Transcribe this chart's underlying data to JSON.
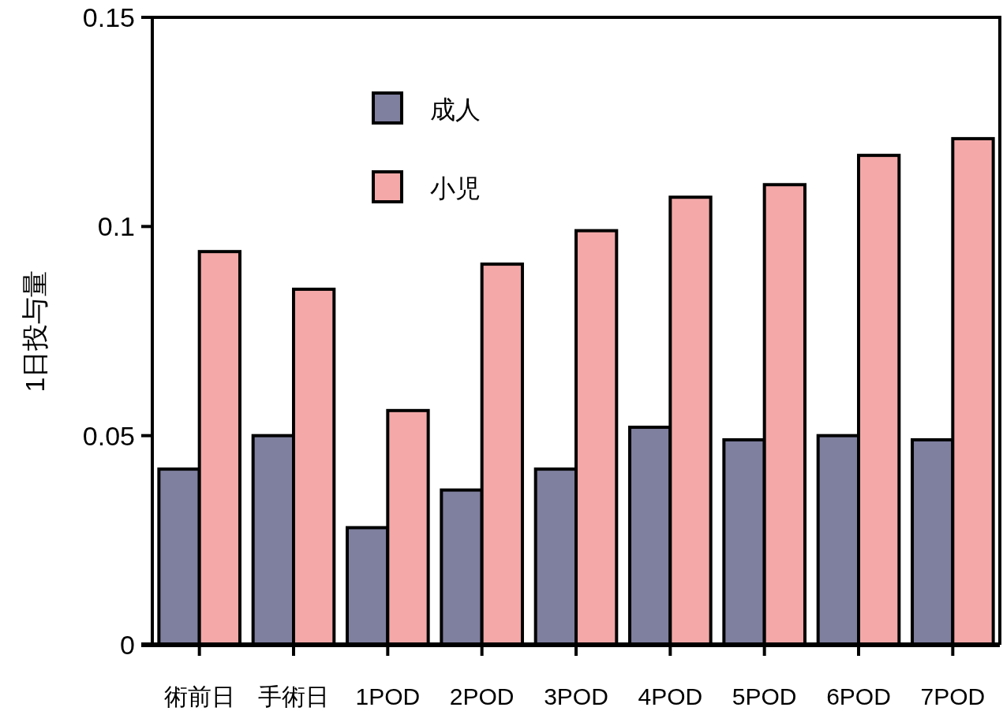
{
  "chart_data": {
    "type": "bar",
    "ylabel": "1日投与量",
    "categories": [
      "術前日",
      "手術日",
      "1POD",
      "2POD",
      "3POD",
      "4POD",
      "5POD",
      "6POD",
      "7POD"
    ],
    "series": [
      {
        "name": "成人",
        "color": "#7f7f9f",
        "values": [
          0.042,
          0.05,
          0.028,
          0.037,
          0.042,
          0.052,
          0.049,
          0.05,
          0.049
        ]
      },
      {
        "name": "小児",
        "color": "#f4a8a8",
        "values": [
          0.094,
          0.085,
          0.056,
          0.091,
          0.099,
          0.107,
          0.11,
          0.117,
          0.121
        ]
      }
    ],
    "ylim": [
      0,
      0.15
    ],
    "yticks": [
      0,
      0.05,
      0.1,
      0.15
    ],
    "legend": "top",
    "grid": false
  }
}
